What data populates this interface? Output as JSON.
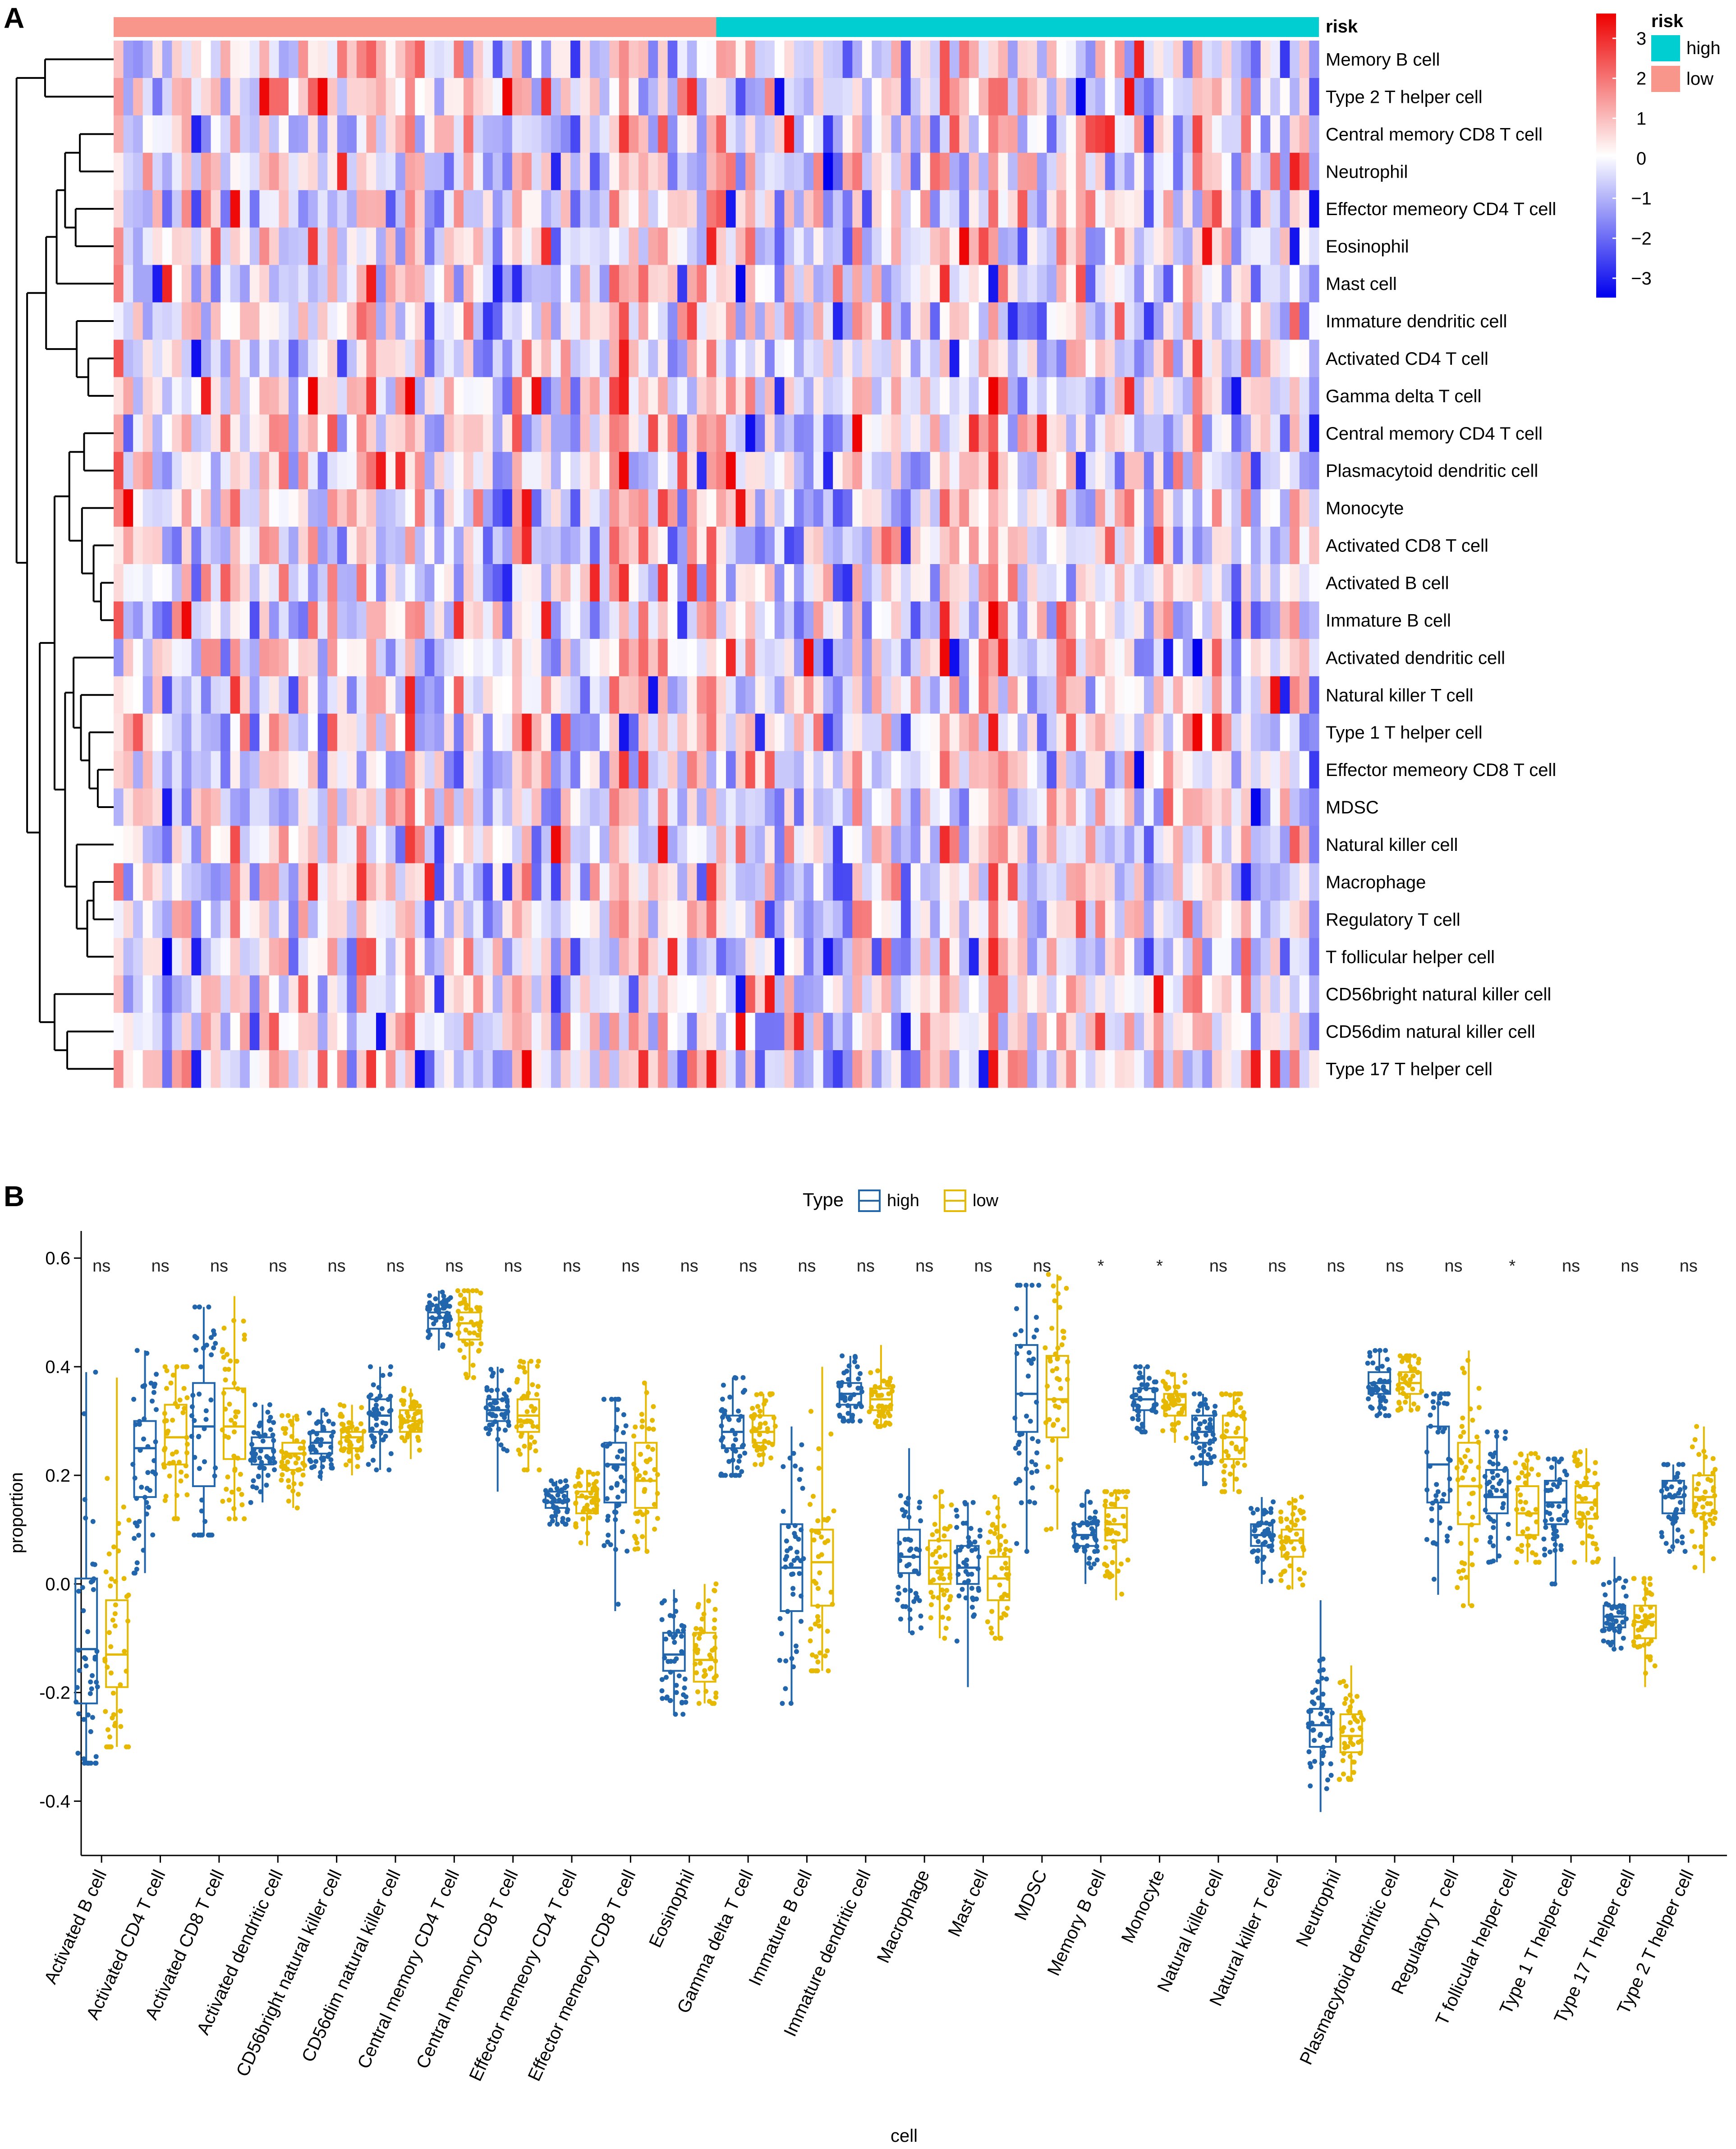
{
  "panel_labels": {
    "a": "A",
    "b": "B"
  },
  "colors": {
    "risk_high": "#00CED1",
    "risk_low": "#F8968C",
    "heat_low": "#0000EE",
    "heat_mid": "#FFFFFF",
    "heat_high": "#EE0000",
    "box_high": "#2166AC",
    "box_low": "#E6B800"
  },
  "chart_data": [
    {
      "type": "heatmap",
      "annotation_label": "risk",
      "annotation_groups": [
        {
          "name": "low",
          "count": 62
        },
        {
          "name": "high",
          "count": 62
        }
      ],
      "rows": [
        "Memory B cell",
        "Type 2 T helper cell",
        "Central memory CD8 T cell",
        "Neutrophil",
        "Effector memeory CD4 T cell",
        "Eosinophil",
        "Mast cell",
        "Immature dendritic cell",
        "Activated CD4 T cell",
        "Gamma delta T cell",
        "Central memory CD4 T cell",
        "Plasmacytoid dendritic cell",
        "Monocyte",
        "Activated CD8 T cell",
        "Activated B cell",
        "Immature  B cell",
        "Activated dendritic cell",
        "Natural killer T cell",
        "Type 1 T helper cell",
        "Effector memeory CD8 T cell",
        "MDSC",
        "Natural killer cell",
        "Macrophage",
        "Regulatory T cell",
        "T follicular helper cell",
        "CD56bright natural killer cell",
        "CD56dim natural killer cell",
        "Type 17 T helper cell"
      ],
      "scale": {
        "min": -3,
        "max": 3,
        "ticks": [
          "3",
          "2",
          "1",
          "0",
          "−1",
          "−2",
          "−3"
        ]
      },
      "legend": {
        "title": "risk",
        "items": [
          "high",
          "low"
        ]
      }
    },
    {
      "type": "box",
      "legend": {
        "title": "Type",
        "items": [
          "high",
          "low"
        ]
      },
      "xlabel": "cell",
      "ylabel": "proportion",
      "ylim": [
        -0.5,
        0.65
      ],
      "yticks": [
        -0.4,
        -0.2,
        0.0,
        0.2,
        0.4,
        0.6
      ],
      "ytick_labels": [
        "-0.4",
        "-0.2",
        "0.0",
        "0.2",
        "0.4",
        "0.6"
      ],
      "categories": [
        {
          "name": "Activated B cell",
          "sig": "ns",
          "high": {
            "min": -0.33,
            "q1": -0.22,
            "median": -0.12,
            "q3": 0.01,
            "max": 0.39
          },
          "low": {
            "min": -0.3,
            "q1": -0.19,
            "median": -0.13,
            "q3": -0.03,
            "max": 0.38
          }
        },
        {
          "name": "Activated CD4 T cell",
          "sig": "ns",
          "high": {
            "min": 0.02,
            "q1": 0.16,
            "median": 0.25,
            "q3": 0.3,
            "max": 0.43
          },
          "low": {
            "min": 0.12,
            "q1": 0.22,
            "median": 0.27,
            "q3": 0.33,
            "max": 0.4
          }
        },
        {
          "name": "Activated CD8 T cell",
          "sig": "ns",
          "high": {
            "min": 0.09,
            "q1": 0.18,
            "median": 0.29,
            "q3": 0.37,
            "max": 0.51
          },
          "low": {
            "min": 0.12,
            "q1": 0.23,
            "median": 0.29,
            "q3": 0.36,
            "max": 0.53
          }
        },
        {
          "name": "Activated dendritic cell",
          "sig": "ns",
          "high": {
            "min": 0.15,
            "q1": 0.22,
            "median": 0.25,
            "q3": 0.27,
            "max": 0.33
          },
          "low": {
            "min": 0.14,
            "q1": 0.21,
            "median": 0.24,
            "q3": 0.26,
            "max": 0.31
          }
        },
        {
          "name": "CD56bright natural killer cell",
          "sig": "ns",
          "high": {
            "min": 0.19,
            "q1": 0.24,
            "median": 0.26,
            "q3": 0.28,
            "max": 0.32
          },
          "low": {
            "min": 0.2,
            "q1": 0.25,
            "median": 0.27,
            "q3": 0.28,
            "max": 0.33
          }
        },
        {
          "name": "CD56dim natural killer cell",
          "sig": "ns",
          "high": {
            "min": 0.21,
            "q1": 0.28,
            "median": 0.31,
            "q3": 0.34,
            "max": 0.4
          },
          "low": {
            "min": 0.23,
            "q1": 0.28,
            "median": 0.3,
            "q3": 0.32,
            "max": 0.36
          }
        },
        {
          "name": "Central memory CD4 T cell",
          "sig": "ns",
          "high": {
            "min": 0.43,
            "q1": 0.47,
            "median": 0.49,
            "q3": 0.5,
            "max": 0.54
          },
          "low": {
            "min": 0.38,
            "q1": 0.45,
            "median": 0.48,
            "q3": 0.5,
            "max": 0.54
          }
        },
        {
          "name": "Central memory CD8 T cell",
          "sig": "ns",
          "high": {
            "min": 0.17,
            "q1": 0.3,
            "median": 0.32,
            "q3": 0.34,
            "max": 0.4
          },
          "low": {
            "min": 0.21,
            "q1": 0.28,
            "median": 0.31,
            "q3": 0.34,
            "max": 0.41
          }
        },
        {
          "name": "Effector memeory CD4 T cell",
          "sig": "ns",
          "high": {
            "min": 0.11,
            "q1": 0.14,
            "median": 0.15,
            "q3": 0.17,
            "max": 0.19
          },
          "low": {
            "min": 0.07,
            "q1": 0.13,
            "median": 0.16,
            "q3": 0.17,
            "max": 0.21
          }
        },
        {
          "name": "Effector memeory CD8 T cell",
          "sig": "ns",
          "high": {
            "min": -0.05,
            "q1": 0.15,
            "median": 0.22,
            "q3": 0.26,
            "max": 0.34
          },
          "low": {
            "min": 0.06,
            "q1": 0.14,
            "median": 0.19,
            "q3": 0.26,
            "max": 0.37
          }
        },
        {
          "name": "Eosinophil",
          "sig": "ns",
          "high": {
            "min": -0.24,
            "q1": -0.16,
            "median": -0.13,
            "q3": -0.09,
            "max": -0.01
          },
          "low": {
            "min": -0.22,
            "q1": -0.18,
            "median": -0.14,
            "q3": -0.09,
            "max": 0.0
          }
        },
        {
          "name": "Gamma delta T cell",
          "sig": "ns",
          "high": {
            "min": 0.2,
            "q1": 0.25,
            "median": 0.28,
            "q3": 0.31,
            "max": 0.38
          },
          "low": {
            "min": 0.22,
            "q1": 0.26,
            "median": 0.28,
            "q3": 0.31,
            "max": 0.35
          }
        },
        {
          "name": "Immature  B cell",
          "sig": "ns",
          "high": {
            "min": -0.22,
            "q1": -0.05,
            "median": 0.03,
            "q3": 0.11,
            "max": 0.29
          },
          "low": {
            "min": -0.16,
            "q1": -0.04,
            "median": 0.04,
            "q3": 0.1,
            "max": 0.4
          }
        },
        {
          "name": "Immature dendritic cell",
          "sig": "ns",
          "high": {
            "min": 0.3,
            "q1": 0.33,
            "median": 0.35,
            "q3": 0.37,
            "max": 0.42
          },
          "low": {
            "min": 0.29,
            "q1": 0.32,
            "median": 0.34,
            "q3": 0.36,
            "max": 0.44
          }
        },
        {
          "name": "Macrophage",
          "sig": "ns",
          "high": {
            "min": -0.09,
            "q1": 0.02,
            "median": 0.05,
            "q3": 0.1,
            "max": 0.25
          },
          "low": {
            "min": -0.1,
            "q1": 0.0,
            "median": 0.03,
            "q3": 0.08,
            "max": 0.17
          }
        },
        {
          "name": "Mast cell",
          "sig": "ns",
          "high": {
            "min": -0.19,
            "q1": 0.0,
            "median": 0.03,
            "q3": 0.07,
            "max": 0.15
          },
          "low": {
            "min": -0.1,
            "q1": -0.03,
            "median": 0.01,
            "q3": 0.05,
            "max": 0.16
          }
        },
        {
          "name": "MDSC",
          "sig": "ns",
          "high": {
            "min": 0.06,
            "q1": 0.28,
            "median": 0.35,
            "q3": 0.44,
            "max": 0.55
          },
          "low": {
            "min": 0.1,
            "q1": 0.27,
            "median": 0.34,
            "q3": 0.42,
            "max": 0.57
          }
        },
        {
          "name": "Memory B cell",
          "sig": "*",
          "high": {
            "min": 0.0,
            "q1": 0.07,
            "median": 0.09,
            "q3": 0.11,
            "max": 0.17
          },
          "low": {
            "min": -0.03,
            "q1": 0.08,
            "median": 0.11,
            "q3": 0.14,
            "max": 0.17
          }
        },
        {
          "name": "Monocyte",
          "sig": "*",
          "high": {
            "min": 0.28,
            "q1": 0.32,
            "median": 0.34,
            "q3": 0.36,
            "max": 0.4
          },
          "low": {
            "min": 0.26,
            "q1": 0.31,
            "median": 0.33,
            "q3": 0.35,
            "max": 0.39
          }
        },
        {
          "name": "Natural killer cell",
          "sig": "ns",
          "high": {
            "min": 0.18,
            "q1": 0.26,
            "median": 0.28,
            "q3": 0.31,
            "max": 0.35
          },
          "low": {
            "min": 0.17,
            "q1": 0.23,
            "median": 0.27,
            "q3": 0.31,
            "max": 0.35
          }
        },
        {
          "name": "Natural killer T cell",
          "sig": "ns",
          "high": {
            "min": 0.0,
            "q1": 0.07,
            "median": 0.09,
            "q3": 0.11,
            "max": 0.16
          },
          "low": {
            "min": -0.01,
            "q1": 0.05,
            "median": 0.08,
            "q3": 0.1,
            "max": 0.16
          }
        },
        {
          "name": "Neutrophil",
          "sig": "ns",
          "high": {
            "min": -0.42,
            "q1": -0.3,
            "median": -0.26,
            "q3": -0.23,
            "max": -0.03
          },
          "low": {
            "min": -0.36,
            "q1": -0.31,
            "median": -0.28,
            "q3": -0.24,
            "max": -0.15
          }
        },
        {
          "name": "Plasmacytoid dendritic cell",
          "sig": "ns",
          "high": {
            "min": 0.31,
            "q1": 0.35,
            "median": 0.37,
            "q3": 0.39,
            "max": 0.43
          },
          "low": {
            "min": 0.32,
            "q1": 0.35,
            "median": 0.37,
            "q3": 0.39,
            "max": 0.42
          }
        },
        {
          "name": "Regulatory T cell",
          "sig": "ns",
          "high": {
            "min": -0.02,
            "q1": 0.15,
            "median": 0.22,
            "q3": 0.29,
            "max": 0.35
          },
          "low": {
            "min": -0.04,
            "q1": 0.11,
            "median": 0.18,
            "q3": 0.26,
            "max": 0.43
          }
        },
        {
          "name": "T follicular helper cell",
          "sig": "*",
          "high": {
            "min": 0.04,
            "q1": 0.13,
            "median": 0.16,
            "q3": 0.21,
            "max": 0.28
          },
          "low": {
            "min": 0.04,
            "q1": 0.09,
            "median": 0.13,
            "q3": 0.18,
            "max": 0.24
          }
        },
        {
          "name": "Type 1 T helper cell",
          "sig": "ns",
          "high": {
            "min": 0.0,
            "q1": 0.11,
            "median": 0.15,
            "q3": 0.19,
            "max": 0.23
          },
          "low": {
            "min": 0.04,
            "q1": 0.12,
            "median": 0.15,
            "q3": 0.18,
            "max": 0.25
          }
        },
        {
          "name": "Type 17 T helper cell",
          "sig": "ns",
          "high": {
            "min": -0.12,
            "q1": -0.08,
            "median": -0.06,
            "q3": -0.04,
            "max": 0.05
          },
          "low": {
            "min": -0.19,
            "q1": -0.1,
            "median": -0.07,
            "q3": -0.04,
            "max": 0.01
          }
        },
        {
          "name": "Type 2 T helper cell",
          "sig": "ns",
          "high": {
            "min": 0.06,
            "q1": 0.13,
            "median": 0.16,
            "q3": 0.19,
            "max": 0.22
          },
          "low": {
            "min": 0.02,
            "q1": 0.13,
            "median": 0.16,
            "q3": 0.2,
            "max": 0.29
          }
        }
      ]
    }
  ]
}
